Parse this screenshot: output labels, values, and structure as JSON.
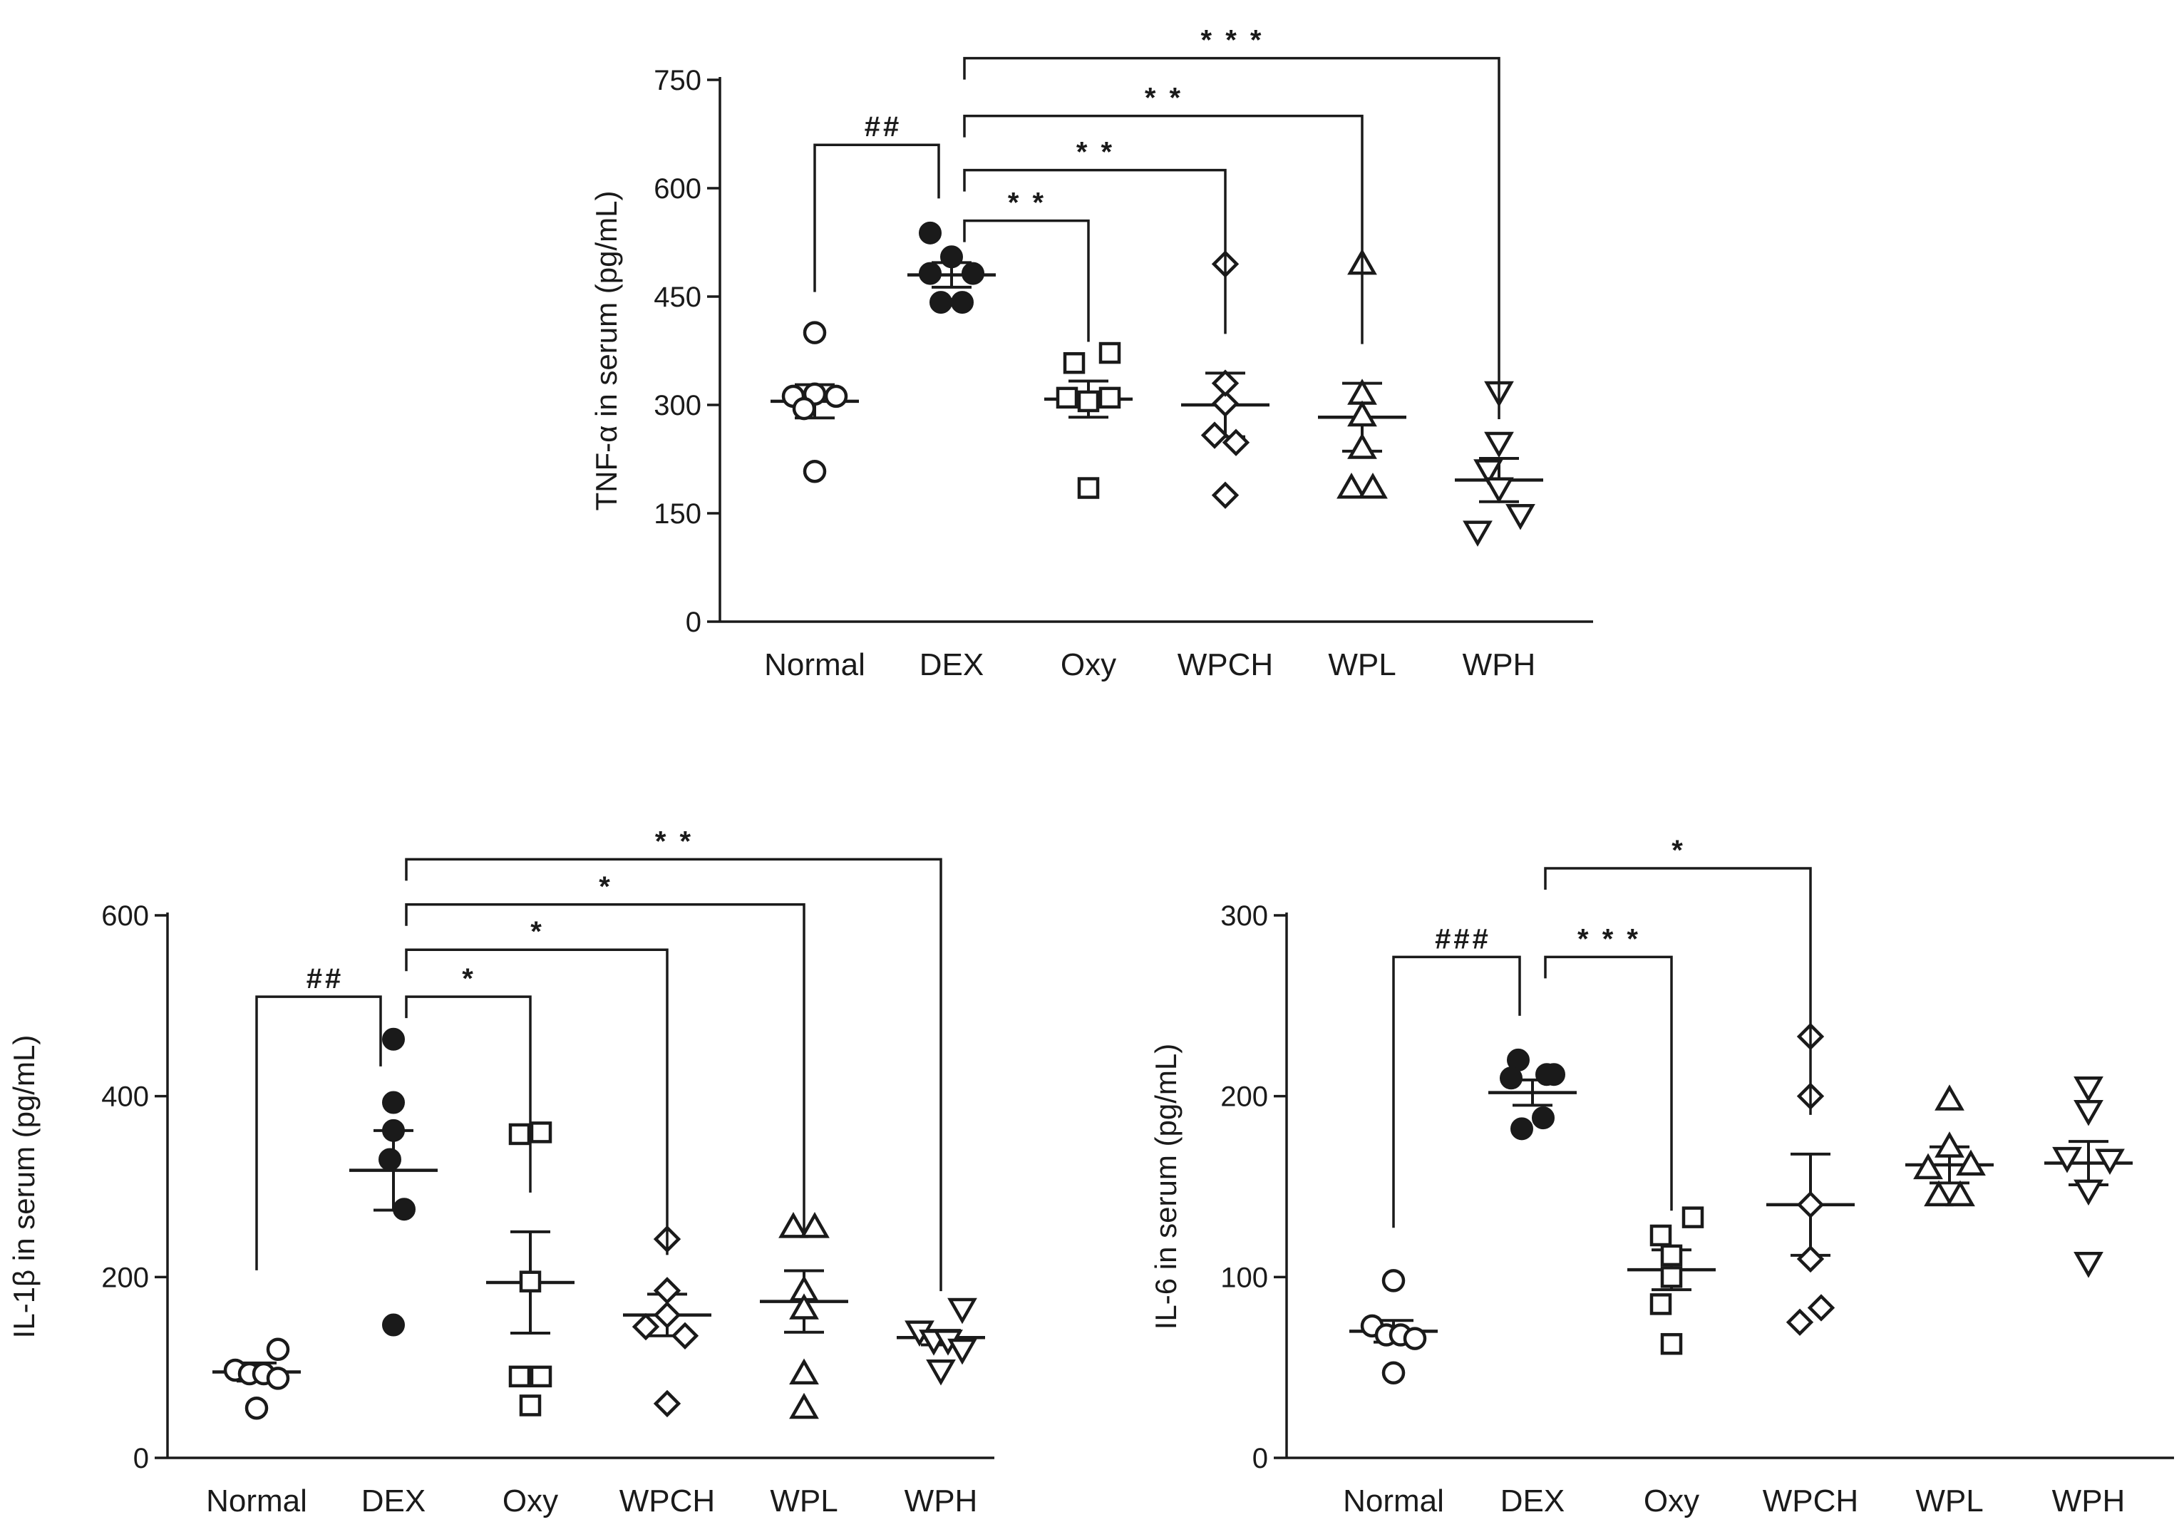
{
  "chart_data": [
    {
      "type": "scatter",
      "id": "tnf",
      "ylabel": "TNF-α in serum (pg/mL)",
      "ylim": [
        0,
        750
      ],
      "yticks": [
        0,
        150,
        300,
        450,
        600,
        750
      ],
      "categories": [
        "Normal",
        "DEX",
        "Oxy",
        "WPCH",
        "WPL",
        "WPH"
      ],
      "markers": [
        "circle-open",
        "circle-filled",
        "square-open",
        "diamond-open",
        "triangle-up-open",
        "triangle-down-open"
      ],
      "points": [
        [
          {
            "dx": 0,
            "y": 400
          },
          {
            "dx": -0.3,
            "y": 312
          },
          {
            "dx": 0,
            "y": 315
          },
          {
            "dx": 0.3,
            "y": 312
          },
          {
            "dx": -0.15,
            "y": 295
          },
          {
            "dx": 0,
            "y": 208
          }
        ],
        [
          {
            "dx": -0.3,
            "y": 538
          },
          {
            "dx": 0,
            "y": 505
          },
          {
            "dx": -0.3,
            "y": 482
          },
          {
            "dx": 0.3,
            "y": 482
          },
          {
            "dx": -0.15,
            "y": 442
          },
          {
            "dx": 0.15,
            "y": 442
          }
        ],
        [
          {
            "dx": 0.3,
            "y": 372
          },
          {
            "dx": -0.2,
            "y": 358
          },
          {
            "dx": -0.3,
            "y": 310
          },
          {
            "dx": 0,
            "y": 305
          },
          {
            "dx": 0.3,
            "y": 310
          },
          {
            "dx": 0,
            "y": 185
          }
        ],
        [
          {
            "dx": 0,
            "y": 495
          },
          {
            "dx": 0,
            "y": 302
          },
          {
            "dx": -0.15,
            "y": 258
          },
          {
            "dx": 0.15,
            "y": 248
          },
          {
            "dx": 0,
            "y": 175
          },
          {
            "dx": 0,
            "y": 330
          }
        ],
        [
          {
            "dx": 0,
            "y": 495
          },
          {
            "dx": 0,
            "y": 315
          },
          {
            "dx": 0,
            "y": 285
          },
          {
            "dx": 0,
            "y": 240
          },
          {
            "dx": -0.15,
            "y": 185
          },
          {
            "dx": 0.15,
            "y": 185
          }
        ],
        [
          {
            "dx": 0,
            "y": 318
          },
          {
            "dx": 0,
            "y": 248
          },
          {
            "dx": -0.15,
            "y": 210
          },
          {
            "dx": 0,
            "y": 185
          },
          {
            "dx": -0.3,
            "y": 125
          },
          {
            "dx": 0.3,
            "y": 148
          }
        ]
      ],
      "mean": [
        305,
        480,
        308,
        300,
        283,
        196
      ],
      "sem": [
        23,
        17,
        25,
        44,
        47,
        30
      ],
      "annotations": [
        {
          "from": 0,
          "to": 1,
          "label": "##",
          "level": 660
        },
        {
          "from": 1,
          "to": 2,
          "label": "* *",
          "level": 555
        },
        {
          "from": 1,
          "to": 3,
          "label": "* *",
          "level": 625
        },
        {
          "from": 1,
          "to": 4,
          "label": "* *",
          "level": 700
        },
        {
          "from": 1,
          "to": 5,
          "label": "* * *",
          "level": 780
        }
      ]
    },
    {
      "type": "scatter",
      "id": "il1b",
      "ylabel": "IL-1β in serum (pg/mL)",
      "ylim": [
        0,
        600
      ],
      "yticks": [
        0,
        200,
        400,
        600
      ],
      "categories": [
        "Normal",
        "DEX",
        "Oxy",
        "WPCH",
        "WPL",
        "WPH"
      ],
      "markers": [
        "circle-open",
        "circle-filled",
        "square-open",
        "diamond-open",
        "triangle-up-open",
        "triangle-down-open"
      ],
      "points": [
        [
          {
            "dx": 0.3,
            "y": 120
          },
          {
            "dx": -0.3,
            "y": 97
          },
          {
            "dx": -0.1,
            "y": 93
          },
          {
            "dx": 0.1,
            "y": 93
          },
          {
            "dx": 0.3,
            "y": 88
          },
          {
            "dx": 0,
            "y": 55
          }
        ],
        [
          {
            "dx": 0,
            "y": 463
          },
          {
            "dx": 0,
            "y": 393
          },
          {
            "dx": -0.05,
            "y": 330
          },
          {
            "dx": 0.15,
            "y": 275
          },
          {
            "dx": 0,
            "y": 147
          },
          {
            "dx": 0,
            "y": 362
          }
        ],
        [
          {
            "dx": -0.15,
            "y": 358
          },
          {
            "dx": 0.15,
            "y": 360
          },
          {
            "dx": 0,
            "y": 195
          },
          {
            "dx": -0.15,
            "y": 90
          },
          {
            "dx": 0.15,
            "y": 90
          },
          {
            "dx": 0,
            "y": 58
          }
        ],
        [
          {
            "dx": 0,
            "y": 242
          },
          {
            "dx": 0,
            "y": 185
          },
          {
            "dx": 0,
            "y": 158
          },
          {
            "dx": -0.3,
            "y": 145
          },
          {
            "dx": 0.25,
            "y": 135
          },
          {
            "dx": 0,
            "y": 60
          }
        ],
        [
          {
            "dx": -0.15,
            "y": 255
          },
          {
            "dx": 0.15,
            "y": 255
          },
          {
            "dx": 0,
            "y": 185
          },
          {
            "dx": 0,
            "y": 165
          },
          {
            "dx": 0,
            "y": 93
          },
          {
            "dx": 0,
            "y": 55
          }
        ],
        [
          {
            "dx": 0.3,
            "y": 165
          },
          {
            "dx": -0.3,
            "y": 140
          },
          {
            "dx": -0.1,
            "y": 130
          },
          {
            "dx": 0.1,
            "y": 130
          },
          {
            "dx": 0.3,
            "y": 120
          },
          {
            "dx": 0,
            "y": 97
          }
        ]
      ],
      "mean": [
        95,
        318,
        194,
        158,
        173,
        133
      ],
      "sem": [
        10,
        44,
        56,
        23,
        34,
        8
      ],
      "annotations": [
        {
          "from": 0,
          "to": 1,
          "label": "##",
          "level": 510
        },
        {
          "from": 1,
          "to": 2,
          "label": "*",
          "level": 510
        },
        {
          "from": 1,
          "to": 3,
          "label": "*",
          "level": 562
        },
        {
          "from": 1,
          "to": 4,
          "label": "*",
          "level": 612
        },
        {
          "from": 1,
          "to": 5,
          "label": "* *",
          "level": 662
        }
      ]
    },
    {
      "type": "scatter",
      "id": "il6",
      "ylabel": "IL-6 in serum (pg/mL)",
      "ylim": [
        0,
        300
      ],
      "yticks": [
        0,
        100,
        200,
        300
      ],
      "categories": [
        "Normal",
        "DEX",
        "Oxy",
        "WPCH",
        "WPL",
        "WPH"
      ],
      "markers": [
        "circle-open",
        "circle-filled",
        "square-open",
        "diamond-open",
        "triangle-up-open",
        "triangle-down-open"
      ],
      "points": [
        [
          {
            "dx": 0,
            "y": 98
          },
          {
            "dx": -0.3,
            "y": 73
          },
          {
            "dx": -0.1,
            "y": 68
          },
          {
            "dx": 0.1,
            "y": 68
          },
          {
            "dx": 0.3,
            "y": 66
          },
          {
            "dx": 0,
            "y": 47
          }
        ],
        [
          {
            "dx": -0.2,
            "y": 220
          },
          {
            "dx": 0.2,
            "y": 212
          },
          {
            "dx": -0.3,
            "y": 210
          },
          {
            "dx": 0.3,
            "y": 212
          },
          {
            "dx": -0.15,
            "y": 182
          },
          {
            "dx": 0.15,
            "y": 188
          }
        ],
        [
          {
            "dx": 0.3,
            "y": 133
          },
          {
            "dx": -0.15,
            "y": 123
          },
          {
            "dx": 0,
            "y": 112
          },
          {
            "dx": 0,
            "y": 100
          },
          {
            "dx": -0.15,
            "y": 85
          },
          {
            "dx": 0,
            "y": 63
          }
        ],
        [
          {
            "dx": 0,
            "y": 233
          },
          {
            "dx": 0,
            "y": 200
          },
          {
            "dx": 0,
            "y": 140
          },
          {
            "dx": 0,
            "y": 110
          },
          {
            "dx": 0.15,
            "y": 83
          },
          {
            "dx": -0.15,
            "y": 75
          }
        ],
        [
          {
            "dx": 0,
            "y": 198
          },
          {
            "dx": 0,
            "y": 172
          },
          {
            "dx": -0.3,
            "y": 160
          },
          {
            "dx": 0.3,
            "y": 162
          },
          {
            "dx": -0.15,
            "y": 145
          },
          {
            "dx": 0.15,
            "y": 145
          }
        ],
        [
          {
            "dx": 0,
            "y": 205
          },
          {
            "dx": 0,
            "y": 192
          },
          {
            "dx": -0.3,
            "y": 166
          },
          {
            "dx": 0.3,
            "y": 165
          },
          {
            "dx": 0,
            "y": 148
          },
          {
            "dx": 0,
            "y": 108
          }
        ]
      ],
      "mean": [
        70,
        202,
        104,
        140,
        162,
        163
      ],
      "sem": [
        6,
        7,
        11,
        28,
        10,
        12
      ],
      "annotations": [
        {
          "from": 0,
          "to": 1,
          "label": "###",
          "level": 277
        },
        {
          "from": 1,
          "to": 2,
          "label": "* * *",
          "level": 277
        },
        {
          "from": 1,
          "to": 3,
          "label": "*",
          "level": 326
        }
      ]
    }
  ]
}
